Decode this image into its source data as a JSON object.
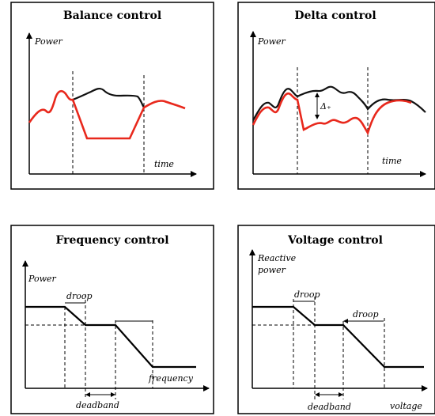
{
  "panels": {
    "balance": {
      "title": "Balance control",
      "y_label": "Power",
      "x_label": "time"
    },
    "delta": {
      "title": "Delta control",
      "y_label": "Power",
      "x_label": "time",
      "delta_symbol": "Δ₊"
    },
    "frequency": {
      "title": "Frequency control",
      "y_label": "Power",
      "x_label": "frequency",
      "droop_label": "droop",
      "deadband_label": "deadband"
    },
    "voltage": {
      "title": "Voltage control",
      "y_label_line1": "Reactive",
      "y_label_line2": "power",
      "x_label": "voltage",
      "droop_label_1": "droop",
      "droop_label_2": "droop",
      "deadband_label": "deadband"
    }
  },
  "colors": {
    "available_power": "#111111",
    "controlled_power": "#e8281c",
    "frame": "#000000"
  }
}
